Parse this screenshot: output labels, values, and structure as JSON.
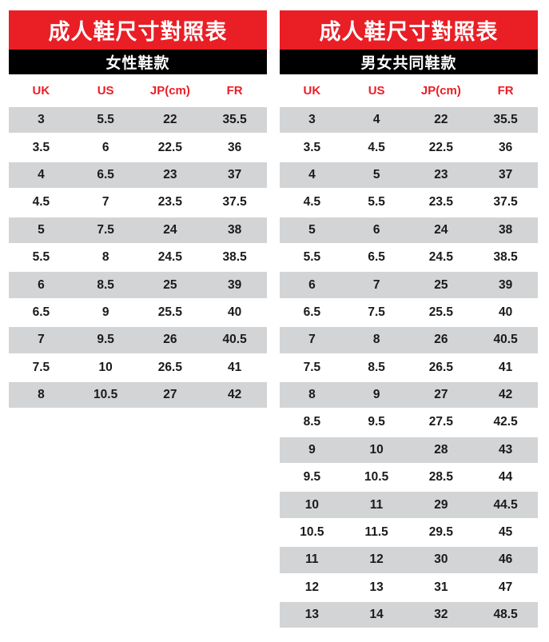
{
  "colors": {
    "accent_red": "#ea1e25",
    "band_black": "#000000",
    "row_gray": "#d3d4d6",
    "text_dark": "#1a1a1a"
  },
  "chart_data": [
    {
      "type": "table",
      "title": "成人鞋尺寸對照表",
      "subtitle": "女性鞋款",
      "columns": [
        "UK",
        "US",
        "JP(cm)",
        "FR"
      ],
      "rows": [
        [
          "3",
          "5.5",
          "22",
          "35.5"
        ],
        [
          "3.5",
          "6",
          "22.5",
          "36"
        ],
        [
          "4",
          "6.5",
          "23",
          "37"
        ],
        [
          "4.5",
          "7",
          "23.5",
          "37.5"
        ],
        [
          "5",
          "7.5",
          "24",
          "38"
        ],
        [
          "5.5",
          "8",
          "24.5",
          "38.5"
        ],
        [
          "6",
          "8.5",
          "25",
          "39"
        ],
        [
          "6.5",
          "9",
          "25.5",
          "40"
        ],
        [
          "7",
          "9.5",
          "26",
          "40.5"
        ],
        [
          "7.5",
          "10",
          "26.5",
          "41"
        ],
        [
          "8",
          "10.5",
          "27",
          "42"
        ]
      ]
    },
    {
      "type": "table",
      "title": "成人鞋尺寸對照表",
      "subtitle": "男女共同鞋款",
      "columns": [
        "UK",
        "US",
        "JP(cm)",
        "FR"
      ],
      "rows": [
        [
          "3",
          "4",
          "22",
          "35.5"
        ],
        [
          "3.5",
          "4.5",
          "22.5",
          "36"
        ],
        [
          "4",
          "5",
          "23",
          "37"
        ],
        [
          "4.5",
          "5.5",
          "23.5",
          "37.5"
        ],
        [
          "5",
          "6",
          "24",
          "38"
        ],
        [
          "5.5",
          "6.5",
          "24.5",
          "38.5"
        ],
        [
          "6",
          "7",
          "25",
          "39"
        ],
        [
          "6.5",
          "7.5",
          "25.5",
          "40"
        ],
        [
          "7",
          "8",
          "26",
          "40.5"
        ],
        [
          "7.5",
          "8.5",
          "26.5",
          "41"
        ],
        [
          "8",
          "9",
          "27",
          "42"
        ],
        [
          "8.5",
          "9.5",
          "27.5",
          "42.5"
        ],
        [
          "9",
          "10",
          "28",
          "43"
        ],
        [
          "9.5",
          "10.5",
          "28.5",
          "44"
        ],
        [
          "10",
          "11",
          "29",
          "44.5"
        ],
        [
          "10.5",
          "11.5",
          "29.5",
          "45"
        ],
        [
          "11",
          "12",
          "30",
          "46"
        ],
        [
          "12",
          "13",
          "31",
          "47"
        ],
        [
          "13",
          "14",
          "32",
          "48.5"
        ]
      ]
    }
  ]
}
